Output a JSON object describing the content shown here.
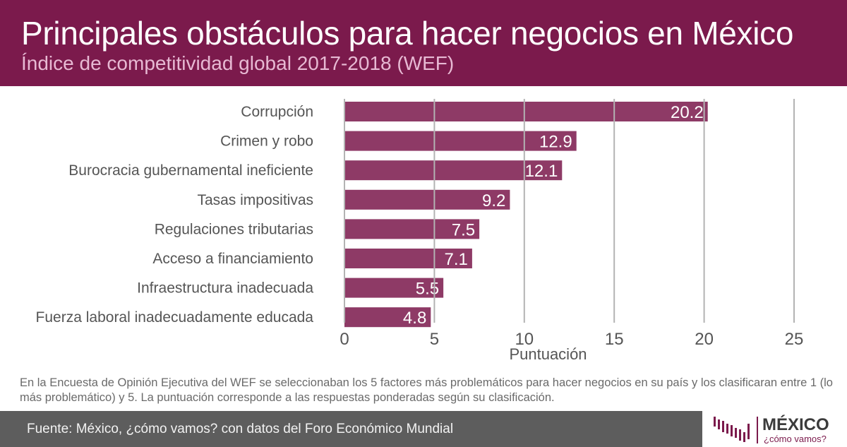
{
  "header": {
    "title": "Principales obstáculos para hacer negocios en México",
    "subtitle": "Índice de competitividad global 2017-2018 (WEF)"
  },
  "chart_data": {
    "type": "bar",
    "orientation": "horizontal",
    "categories": [
      "Corrupción",
      "Crimen y robo",
      "Burocracia gubernamental ineficiente",
      "Tasas impositivas",
      "Regulaciones tributarias",
      "Acceso a financiamiento",
      "Infraestructura inadecuada",
      "Fuerza laboral inadecuadamente educada"
    ],
    "values": [
      20.2,
      12.9,
      12.1,
      9.2,
      7.5,
      7.1,
      5.5,
      4.8
    ],
    "value_labels": [
      "20.2",
      "12.9",
      "12.1",
      "9.2",
      "7.5",
      "7.1",
      "5.5",
      "4.8"
    ],
    "xlabel": "Puntuación",
    "xlim": [
      0,
      25
    ],
    "xticks": [
      0,
      5,
      10,
      15,
      20,
      25
    ],
    "xtick_labels": [
      "0",
      "5",
      "10",
      "15",
      "20",
      "25"
    ],
    "grid": "vertical",
    "legend": "none",
    "bar_color": "#8e3a66"
  },
  "note": "En la Encuesta de Opinión Ejecutiva del WEF se seleccionaban los 5 factores más problemáticos para hacer negocios en su país y los clasificaran entre 1 (lo más problemático) y 5. La puntuación corresponde a las respuestas ponderadas según su clasificación.",
  "footer": {
    "source": "Fuente: México, ¿cómo vamos? con datos del Foro Económico Mundial"
  },
  "logo": {
    "name": "MÉXICO",
    "tagline": "¿cómo vamos?"
  },
  "colors": {
    "header_background": "#7b1a4c",
    "subtitle": "#e7b9d3",
    "bar": "#8e3a66",
    "footer_background": "#5d5d5d"
  }
}
